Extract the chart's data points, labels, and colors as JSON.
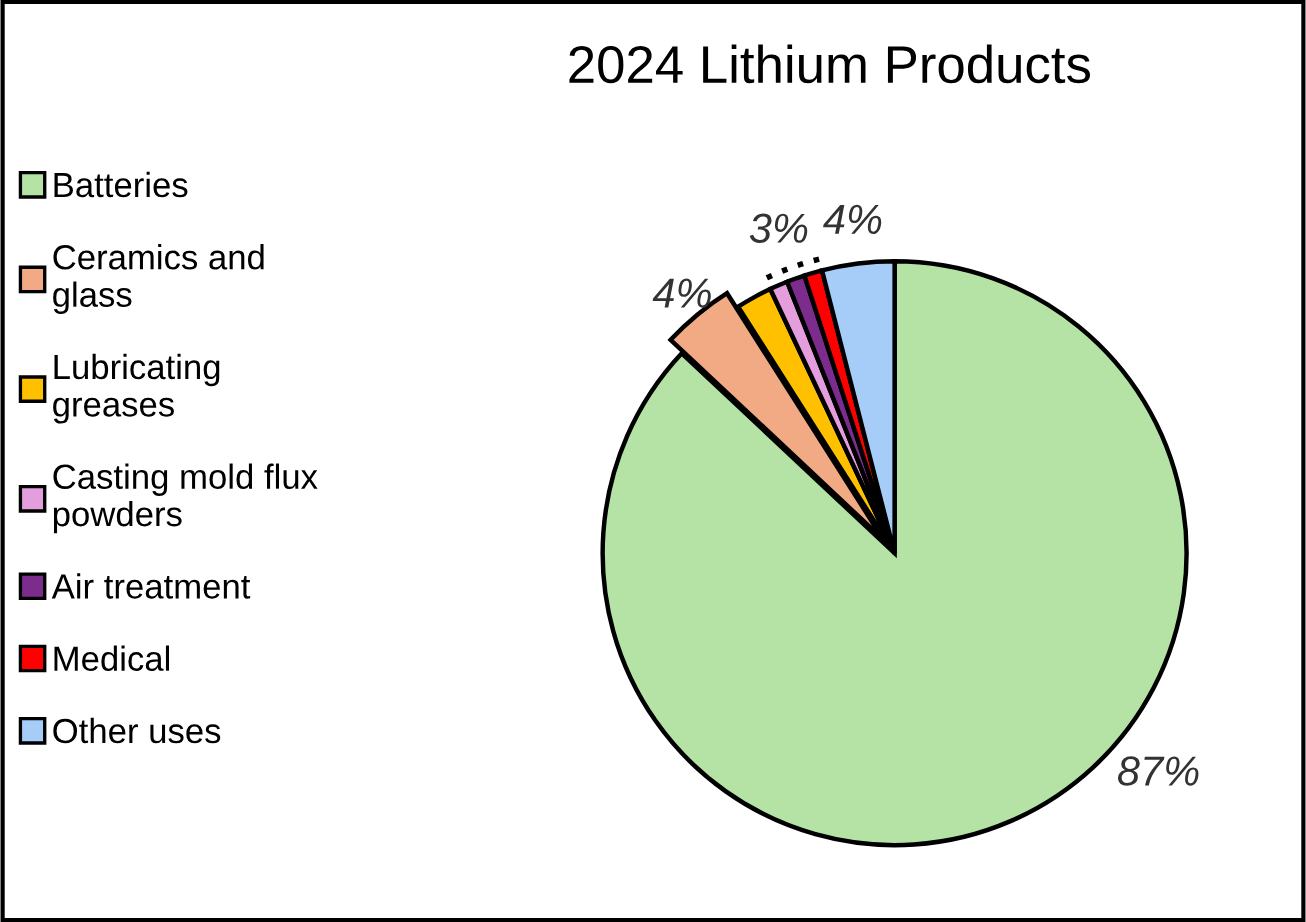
{
  "chart_data": {
    "type": "pie",
    "title": "2024 Lithium Products",
    "categories": [
      "Batteries",
      "Ceramics and glass",
      "Lubricating greases",
      "Casting mold flux powders",
      "Air treatment",
      "Medical",
      "Other uses"
    ],
    "values": [
      87,
      4,
      2,
      1,
      1,
      1,
      4
    ],
    "colors": [
      "#b5e3a5",
      "#f2aa84",
      "#ffc000",
      "#e59edd",
      "#7b2c8c",
      "#ff0000",
      "#a6cdf7"
    ],
    "value_labels": [
      "87%",
      "4%",
      null,
      null,
      null,
      null,
      "4%"
    ],
    "annotations": [
      "3%"
    ],
    "legend": "left"
  }
}
